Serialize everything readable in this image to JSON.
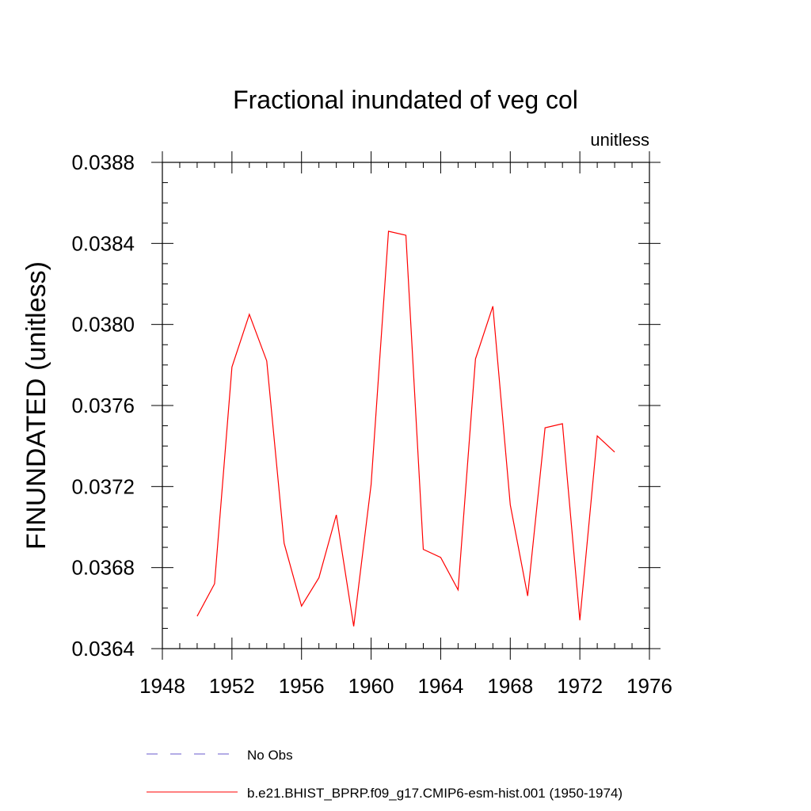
{
  "chart_data": {
    "type": "line",
    "title": "Fractional inundated of veg col",
    "units_label": "unitless",
    "ylabel": "FINUNDATED  (unitless)",
    "xlabel": "",
    "xlim": [
      1948,
      1976
    ],
    "ylim": [
      0.0364,
      0.0388
    ],
    "x_ticks": [
      "1948",
      "1952",
      "1956",
      "1960",
      "1964",
      "1968",
      "1972",
      "1976"
    ],
    "y_ticks": [
      "0.0364",
      "0.0368",
      "0.0372",
      "0.0376",
      "0.0380",
      "0.0384",
      "0.0388"
    ],
    "grid": false,
    "legend_position": "bottom-left",
    "series": [
      {
        "name": "No Obs",
        "color": "#6a5acd",
        "style": "dashed",
        "x": [],
        "values": []
      },
      {
        "name": "b.e21.BHIST_BPRP.f09_g17.CMIP6-esm-hist.001 (1950-1974)",
        "color": "#ff0000",
        "style": "solid",
        "x": [
          1950,
          1951,
          1952,
          1953,
          1954,
          1955,
          1956,
          1957,
          1958,
          1959,
          1960,
          1961,
          1962,
          1963,
          1964,
          1965,
          1966,
          1967,
          1968,
          1969,
          1970,
          1971,
          1972,
          1973,
          1974
        ],
        "values": [
          0.03656,
          0.03672,
          0.03779,
          0.03805,
          0.03782,
          0.03692,
          0.03661,
          0.03675,
          0.03706,
          0.03651,
          0.03721,
          0.03846,
          0.03844,
          0.03689,
          0.03685,
          0.03669,
          0.03783,
          0.03809,
          0.03711,
          0.03666,
          0.03749,
          0.03751,
          0.03654,
          0.03745,
          0.03737
        ]
      }
    ]
  }
}
